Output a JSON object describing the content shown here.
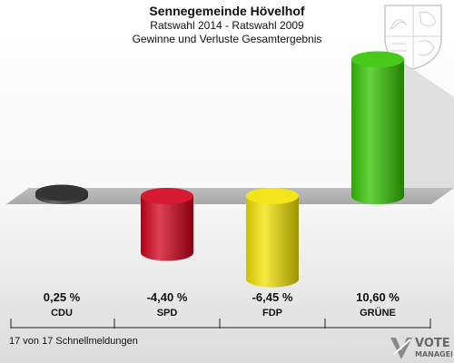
{
  "header": {
    "title": "Sennegemeinde Hövelhof",
    "subtitle1": "Ratswahl 2014 - Ratswahl 2009",
    "subtitle2": "Gewinne und Verluste Gesamtergebnis"
  },
  "chart_data": {
    "type": "bar",
    "categories": [
      "CDU",
      "SPD",
      "FDP",
      "GRÜNE"
    ],
    "values": [
      0.25,
      -4.4,
      -6.45,
      10.6
    ],
    "value_labels": [
      "0,25 %",
      "-4,40 %",
      "-6,45 %",
      "10,60 %"
    ],
    "colors": [
      "#3a3a3a",
      "#d0001a",
      "#f2e200",
      "#33c400"
    ],
    "ylim": [
      -8,
      12
    ],
    "grid": false,
    "legend": "none"
  },
  "footer": {
    "text": "17 von 17 Schnellmeldungen"
  },
  "logo": {
    "line1": "VOTE",
    "line2": "MANAGER"
  }
}
